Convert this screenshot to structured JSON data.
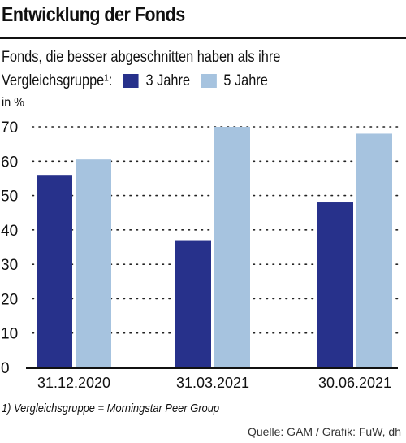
{
  "header": {
    "title": "Entwicklung der Fonds",
    "subtitle_line1": "Fonds, die besser abgeschnitten haben als ihre",
    "subtitle_line2": "Vergleichsgruppe¹:"
  },
  "unit_label": "in %",
  "footnote": "1) Vergleichsgruppe = Morningstar Peer Group",
  "source": "Quelle: GAM / Grafik: FuW, dh",
  "chart_data": {
    "type": "bar",
    "title": "Entwicklung der Fonds",
    "ylabel": "in %",
    "categories": [
      "31.12.2020",
      "31.03.2021",
      "30.06.2021"
    ],
    "series": [
      {
        "name": "3 Jahre",
        "values": [
          56,
          37,
          48
        ],
        "color": "#27318b"
      },
      {
        "name": "5 Jahre",
        "values": [
          60.5,
          70,
          68
        ],
        "color": "#a6c3df"
      }
    ],
    "ylim": [
      0,
      70
    ],
    "yticks": [
      0,
      10,
      20,
      30,
      40,
      50,
      60,
      70
    ],
    "grid": "dotted horizontal",
    "legend_position": "top"
  }
}
